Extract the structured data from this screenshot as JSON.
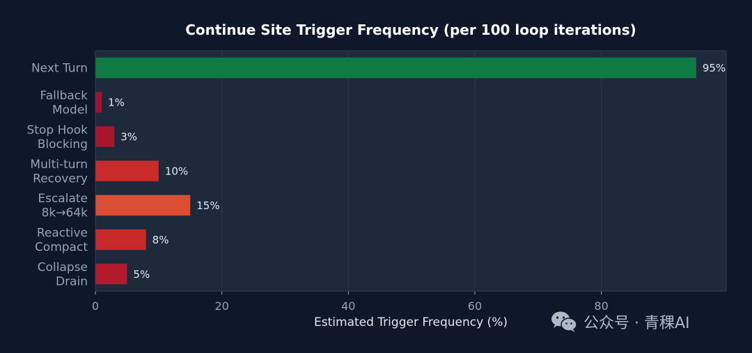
{
  "chart_data": {
    "type": "bar",
    "orientation": "horizontal",
    "title": "Continue Site Trigger Frequency (per 100 loop iterations)",
    "xlabel": "Estimated Trigger Frequency (%)",
    "ylabel": "",
    "xlim": [
      0,
      99.75
    ],
    "xticks": [
      0,
      20,
      40,
      60,
      80
    ],
    "grid": true,
    "categories": [
      [
        "Next Turn"
      ],
      [
        "Fallback",
        "Model"
      ],
      [
        "Stop Hook",
        "Blocking"
      ],
      [
        "Multi-turn",
        "Recovery"
      ],
      [
        "Escalate",
        "8k→64k"
      ],
      [
        "Reactive",
        "Compact"
      ],
      [
        "Collapse",
        "Drain"
      ]
    ],
    "values": [
      95,
      1,
      3,
      10,
      15,
      8,
      5
    ],
    "value_labels": [
      "95%",
      "1%",
      "3%",
      "10%",
      "15%",
      "8%",
      "5%"
    ],
    "bar_colors": [
      "#0e7a44",
      "#a1132d",
      "#a9152d",
      "#c92a2a",
      "#dc4e33",
      "#c72a2a",
      "#b31a2c"
    ]
  },
  "watermark": {
    "text": "公众号 · 青稞AI",
    "icon": "wechat-icon"
  },
  "colors": {
    "page_bg": "#0f172a",
    "plot_bg": "#1e293b",
    "grid": "#2b3a50",
    "frame": "#334155"
  }
}
